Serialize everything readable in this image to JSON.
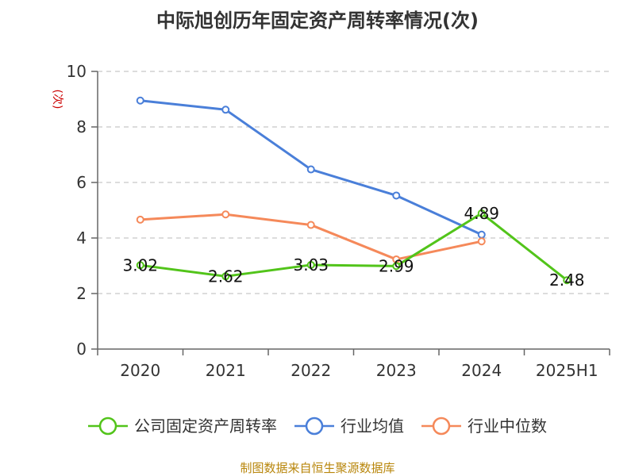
{
  "colors": {
    "company": "#52c41a",
    "industry_avg": "#4a7fd9",
    "industry_median": "#f5895a",
    "grid": "#c8c8c8",
    "axis": "#666666",
    "unit": "#cc0000",
    "source": "#b8860b"
  },
  "chart_data": {
    "type": "line",
    "title": "中际旭创历年固定资产周转率情况(次)",
    "ylabel": "(次)",
    "xlabel": "",
    "categories": [
      "2020",
      "2021",
      "2022",
      "2023",
      "2024",
      "2025H1"
    ],
    "ylim": [
      0,
      10
    ],
    "yticks": [
      0,
      2,
      4,
      6,
      8,
      10
    ],
    "grid": true,
    "legend_position": "bottom",
    "series": [
      {
        "name": "公司固定资产周转率",
        "color_key": "company",
        "values": [
          3.02,
          2.62,
          3.03,
          2.99,
          4.89,
          2.48
        ],
        "labels": [
          "3.02",
          "2.62",
          "3.03",
          "2.99",
          "4.89",
          "2.48"
        ]
      },
      {
        "name": "行业均值",
        "color_key": "industry_avg",
        "values": [
          8.95,
          8.62,
          6.47,
          5.53,
          4.12,
          null
        ]
      },
      {
        "name": "行业中位数",
        "color_key": "industry_median",
        "values": [
          4.66,
          4.85,
          4.47,
          3.23,
          3.88,
          null
        ]
      }
    ]
  },
  "footer": {
    "source": "制图数据来自恒生聚源数据库"
  }
}
